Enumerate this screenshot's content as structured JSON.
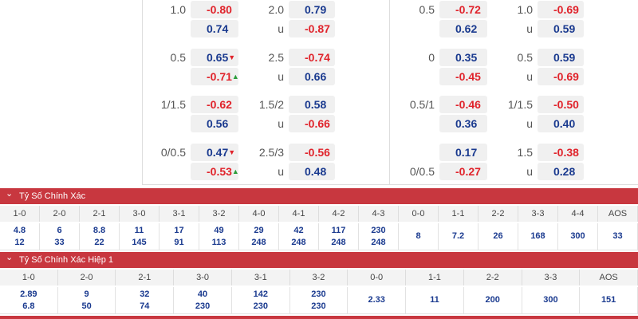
{
  "odds_panels": [
    {
      "rows": [
        {
          "handicap": [
            {
              "label": "1.0",
              "odds": "-0.80"
            },
            {
              "odds": "0.74"
            }
          ],
          "over_under": [
            {
              "label": "2.0",
              "odds": "0.79"
            },
            {
              "label": "u",
              "odds": "-0.87"
            }
          ]
        },
        {
          "handicap": [
            {
              "label": "0.5",
              "odds": "0.65",
              "arrow": "▼"
            },
            {
              "odds": "-0.71",
              "arrow": "▲"
            }
          ],
          "over_under": [
            {
              "label": "2.5",
              "odds": "-0.74"
            },
            {
              "label": "u",
              "odds": "0.66"
            }
          ]
        },
        {
          "handicap": [
            {
              "label": "1/1.5",
              "odds": "-0.62"
            },
            {
              "odds": "0.56"
            }
          ],
          "over_under": [
            {
              "label": "1.5/2",
              "odds": "0.58"
            },
            {
              "label": "u",
              "odds": "-0.66"
            }
          ]
        },
        {
          "handicap": [
            {
              "label": "0/0.5",
              "odds": "0.47",
              "arrow": "▼"
            },
            {
              "odds": "-0.53",
              "arrow": "▲"
            }
          ],
          "over_under": [
            {
              "label": "2.5/3",
              "odds": "-0.56"
            },
            {
              "label": "u",
              "odds": "0.48"
            }
          ]
        }
      ]
    },
    {
      "rows": [
        {
          "handicap": [
            {
              "label": "0.5",
              "odds": "-0.72"
            },
            {
              "odds": "0.62"
            }
          ],
          "over_under": [
            {
              "label": "1.0",
              "odds": "-0.69"
            },
            {
              "label": "u",
              "odds": "0.59"
            }
          ]
        },
        {
          "handicap": [
            {
              "label": "0",
              "odds": "0.35"
            },
            {
              "odds": "-0.45"
            }
          ],
          "over_under": [
            {
              "label": "0.5",
              "odds": "0.59"
            },
            {
              "label": "u",
              "odds": "-0.69"
            }
          ]
        },
        {
          "handicap": [
            {
              "label": "0.5/1",
              "odds": "-0.46"
            },
            {
              "odds": "0.36"
            }
          ],
          "over_under": [
            {
              "label": "1/1.5",
              "odds": "-0.50"
            },
            {
              "label": "u",
              "odds": "0.40"
            }
          ]
        },
        {
          "handicap": [
            {
              "odds": "0.17"
            },
            {
              "label": "0/0.5",
              "odds": "-0.27"
            }
          ],
          "over_under": [
            {
              "label": "1.5",
              "odds": "-0.38"
            },
            {
              "label": "u",
              "odds": "0.28"
            }
          ]
        }
      ]
    }
  ],
  "score_sections": [
    {
      "title": "Tỷ Số Chính Xác",
      "columns": [
        {
          "score": "1-0",
          "odds": [
            "4.8",
            "12"
          ]
        },
        {
          "score": "2-0",
          "odds": [
            "6",
            "33"
          ]
        },
        {
          "score": "2-1",
          "odds": [
            "8.8",
            "22"
          ]
        },
        {
          "score": "3-0",
          "odds": [
            "11",
            "145"
          ]
        },
        {
          "score": "3-1",
          "odds": [
            "17",
            "91"
          ]
        },
        {
          "score": "3-2",
          "odds": [
            "49",
            "113"
          ]
        },
        {
          "score": "4-0",
          "odds": [
            "29",
            "248"
          ]
        },
        {
          "score": "4-1",
          "odds": [
            "42",
            "248"
          ]
        },
        {
          "score": "4-2",
          "odds": [
            "117",
            "248"
          ]
        },
        {
          "score": "4-3",
          "odds": [
            "230",
            "248"
          ]
        },
        {
          "score": "0-0",
          "odds": [
            "8"
          ]
        },
        {
          "score": "1-1",
          "odds": [
            "7.2"
          ]
        },
        {
          "score": "2-2",
          "odds": [
            "26"
          ]
        },
        {
          "score": "3-3",
          "odds": [
            "168"
          ]
        },
        {
          "score": "4-4",
          "odds": [
            "300"
          ]
        },
        {
          "score": "AOS",
          "odds": [
            "33"
          ]
        }
      ]
    },
    {
      "title": "Tỷ Số Chính Xác Hiệp 1",
      "columns": [
        {
          "score": "1-0",
          "odds": [
            "2.89",
            "6.8"
          ]
        },
        {
          "score": "2-0",
          "odds": [
            "9",
            "50"
          ]
        },
        {
          "score": "2-1",
          "odds": [
            "32",
            "74"
          ]
        },
        {
          "score": "3-0",
          "odds": [
            "40",
            "230"
          ]
        },
        {
          "score": "3-1",
          "odds": [
            "142",
            "230"
          ]
        },
        {
          "score": "3-2",
          "odds": [
            "230",
            "230"
          ]
        },
        {
          "score": "0-0",
          "odds": [
            "2.33"
          ]
        },
        {
          "score": "1-1",
          "odds": [
            "11"
          ]
        },
        {
          "score": "2-2",
          "odds": [
            "200"
          ]
        },
        {
          "score": "3-3",
          "odds": [
            "300"
          ]
        },
        {
          "score": "AOS",
          "odds": [
            "151"
          ]
        }
      ]
    }
  ]
}
